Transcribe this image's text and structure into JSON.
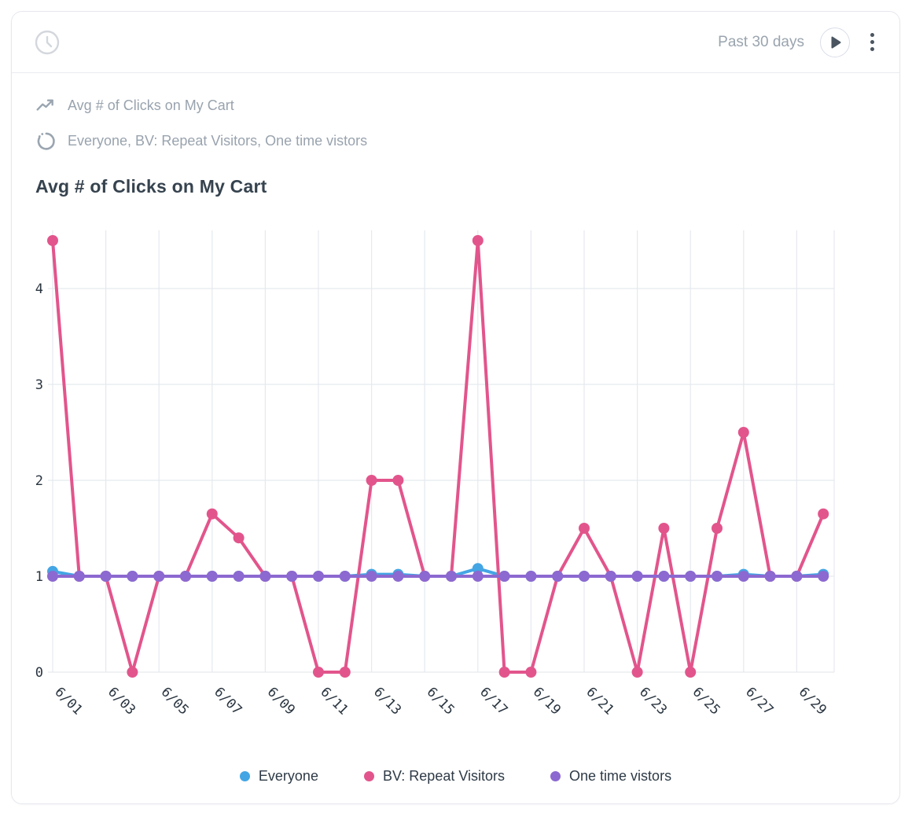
{
  "header": {
    "time_range_label": "Past 30 days",
    "clock_icon": "clock-icon",
    "play_icon": "play-icon",
    "menu_icon": "kebab-menu-icon"
  },
  "meta": {
    "metric_icon": "trend-line-icon",
    "metric_label": "Avg # of Clicks on My Cart",
    "segments_icon": "segments-spinner-icon",
    "segments_label": "Everyone, BV: Repeat Visitors, One time vistors"
  },
  "chart_data": {
    "type": "line",
    "title": "Avg # of Clicks on My Cart",
    "x": [
      "6/01",
      "6/02",
      "6/03",
      "6/04",
      "6/05",
      "6/06",
      "6/07",
      "6/08",
      "6/09",
      "6/10",
      "6/11",
      "6/12",
      "6/13",
      "6/14",
      "6/15",
      "6/16",
      "6/17",
      "6/18",
      "6/19",
      "6/20",
      "6/21",
      "6/22",
      "6/23",
      "6/24",
      "6/25",
      "6/26",
      "6/27",
      "6/28",
      "6/29",
      "6/30"
    ],
    "x_tick_labels": [
      "6/01",
      "6/03",
      "6/05",
      "6/07",
      "6/09",
      "6/11",
      "6/13",
      "6/15",
      "6/17",
      "6/19",
      "6/21",
      "6/23",
      "6/25",
      "6/27",
      "6/29"
    ],
    "yticks": [
      0,
      1,
      2,
      3,
      4
    ],
    "ylim": [
      0,
      4.6
    ],
    "grid": true,
    "legend_position": "bottom",
    "series": [
      {
        "name": "Everyone",
        "color": "#44a5e4",
        "values": [
          1.05,
          1,
          1,
          1,
          1,
          1,
          1,
          1,
          1,
          1,
          1,
          1,
          1.02,
          1.02,
          1,
          1,
          1.08,
          1,
          1,
          1,
          1,
          1,
          1,
          1,
          1,
          1,
          1.02,
          1,
          1,
          1.02
        ]
      },
      {
        "name": "BV: Repeat Visitors",
        "color": "#e2558c",
        "values": [
          4.5,
          1,
          1,
          0,
          1,
          1,
          1.65,
          1.4,
          1,
          1,
          0,
          0,
          2,
          2,
          1,
          1,
          4.5,
          0,
          0,
          1,
          1.5,
          1,
          0,
          1.5,
          0,
          1.5,
          2.5,
          1,
          1,
          1.65
        ]
      },
      {
        "name": "One time vistors",
        "color": "#8c69d0",
        "values": [
          1,
          1,
          1,
          1,
          1,
          1,
          1,
          1,
          1,
          1,
          1,
          1,
          1,
          1,
          1,
          1,
          1,
          1,
          1,
          1,
          1,
          1,
          1,
          1,
          1,
          1,
          1,
          1,
          1,
          1
        ]
      }
    ]
  },
  "colors": {
    "grid": "#e5e9ee",
    "axis_text": "#2a3540",
    "muted_text": "#99a3ae",
    "title_text": "#36434f",
    "border": "#e6e8ee"
  }
}
